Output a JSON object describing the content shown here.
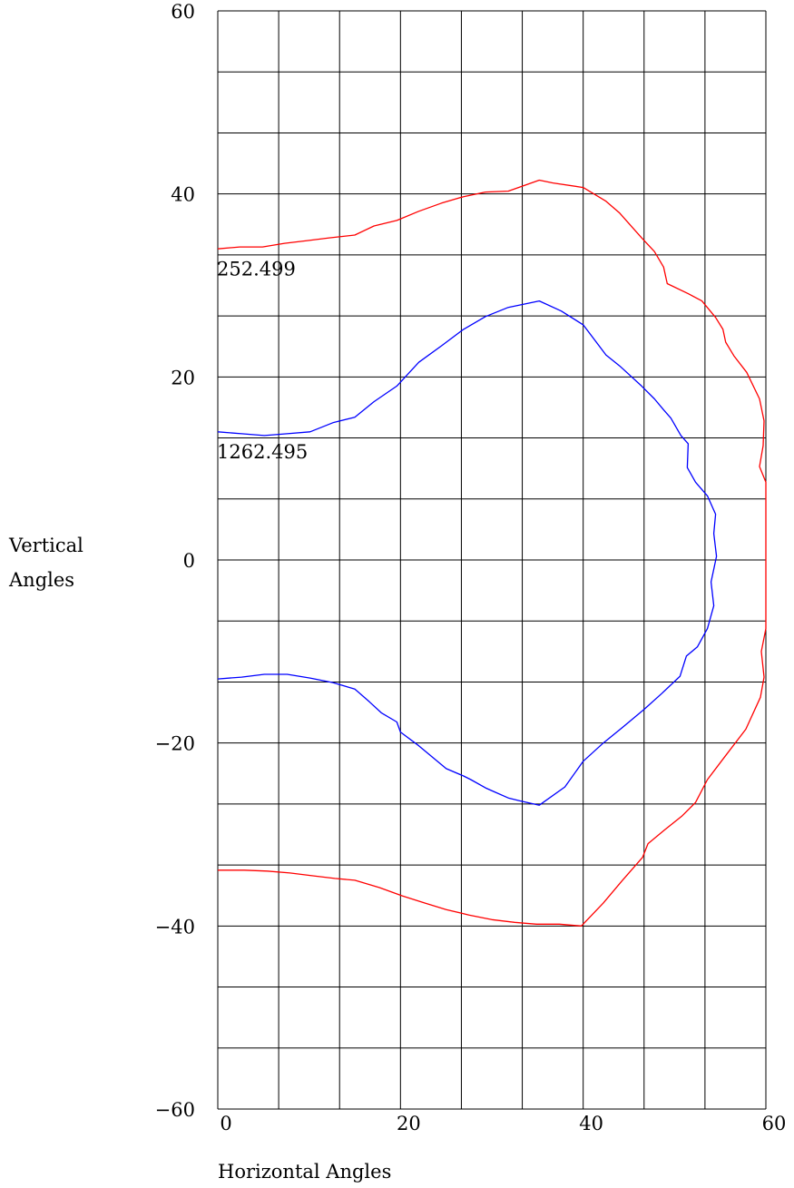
{
  "chart_data": {
    "type": "line",
    "title": "",
    "xlabel": "Horizontal Angles",
    "ylabel_lines": [
      "Vertical",
      "Angles"
    ],
    "xlim": [
      0,
      60
    ],
    "ylim": [
      -60,
      60
    ],
    "x_ticks": [
      0,
      20,
      40,
      60
    ],
    "y_ticks": [
      60,
      40,
      20,
      0,
      -20,
      -40,
      -60
    ],
    "grid": true,
    "grid_columns": 9,
    "grid_rows": 18,
    "colors": {
      "outer": "#ff0000",
      "inner": "#0000ff",
      "grid": "#000000"
    },
    "series": [
      {
        "label": "252.499",
        "label_at": [
          0,
          32
        ],
        "color": "#ff0000",
        "points": [
          [
            0,
            34.0
          ],
          [
            2.4,
            34.2
          ],
          [
            4.9,
            34.2
          ],
          [
            7.3,
            34.6
          ],
          [
            9.8,
            34.9
          ],
          [
            12.2,
            35.2
          ],
          [
            15.0,
            35.5
          ],
          [
            17.1,
            36.5
          ],
          [
            19.6,
            37.1
          ],
          [
            22.0,
            38.1
          ],
          [
            24.5,
            39.0
          ],
          [
            26.9,
            39.7
          ],
          [
            29.3,
            40.2
          ],
          [
            31.8,
            40.3
          ],
          [
            35.2,
            41.5
          ],
          [
            36.7,
            41.2
          ],
          [
            40.0,
            40.7
          ],
          [
            42.5,
            39.2
          ],
          [
            44.0,
            37.9
          ],
          [
            46.4,
            35.2
          ],
          [
            47.8,
            33.7
          ],
          [
            48.8,
            32.0
          ],
          [
            49.2,
            30.2
          ],
          [
            51.5,
            29.1
          ],
          [
            53.0,
            28.3
          ],
          [
            54.5,
            26.5
          ],
          [
            55.3,
            25.2
          ],
          [
            55.6,
            23.8
          ],
          [
            56.5,
            22.3
          ],
          [
            57.9,
            20.5
          ],
          [
            59.3,
            17.6
          ],
          [
            59.8,
            15.2
          ],
          [
            59.7,
            12.5
          ],
          [
            59.3,
            10.2
          ],
          [
            60.0,
            8.5
          ],
          [
            60.0,
            5.0
          ],
          [
            60.0,
            1.0
          ],
          [
            60.0,
            -3.0
          ],
          [
            60.0,
            -5.0
          ],
          [
            60.0,
            -7.5
          ],
          [
            59.5,
            -10.0
          ],
          [
            59.8,
            -12.8
          ],
          [
            59.4,
            -15.0
          ],
          [
            57.8,
            -18.5
          ],
          [
            55.5,
            -21.5
          ],
          [
            53.6,
            -24.0
          ],
          [
            52.3,
            -26.5
          ],
          [
            50.8,
            -28.0
          ],
          [
            48.9,
            -29.5
          ],
          [
            47.1,
            -31.0
          ],
          [
            46.5,
            -32.5
          ],
          [
            44.3,
            -35.0
          ],
          [
            42.2,
            -37.5
          ],
          [
            39.8,
            -40.0
          ],
          [
            37.4,
            -39.8
          ],
          [
            34.9,
            -39.8
          ],
          [
            32.5,
            -39.6
          ],
          [
            30.0,
            -39.3
          ],
          [
            27.5,
            -38.8
          ],
          [
            25.0,
            -38.2
          ],
          [
            22.7,
            -37.5
          ],
          [
            20.2,
            -36.7
          ],
          [
            17.7,
            -35.8
          ],
          [
            15.0,
            -35.0
          ],
          [
            12.8,
            -34.8
          ],
          [
            10.3,
            -34.5
          ],
          [
            7.9,
            -34.2
          ],
          [
            5.4,
            -34.0
          ],
          [
            2.9,
            -33.9
          ],
          [
            0,
            -33.9
          ]
        ]
      },
      {
        "label": "1262.495",
        "label_at": [
          0,
          12
        ],
        "color": "#0000ff",
        "points": [
          [
            0,
            14.0
          ],
          [
            2.6,
            13.8
          ],
          [
            5.1,
            13.6
          ],
          [
            7.6,
            13.8
          ],
          [
            10.1,
            14.0
          ],
          [
            12.6,
            15.0
          ],
          [
            15.0,
            15.6
          ],
          [
            17.1,
            17.3
          ],
          [
            19.6,
            19.0
          ],
          [
            22.0,
            21.6
          ],
          [
            24.5,
            23.4
          ],
          [
            26.9,
            25.2
          ],
          [
            29.3,
            26.6
          ],
          [
            31.8,
            27.6
          ],
          [
            35.2,
            28.3
          ],
          [
            37.6,
            27.2
          ],
          [
            40.0,
            25.7
          ],
          [
            42.5,
            22.4
          ],
          [
            44.0,
            21.2
          ],
          [
            46.4,
            19.0
          ],
          [
            47.8,
            17.6
          ],
          [
            48.8,
            16.4
          ],
          [
            49.6,
            15.5
          ],
          [
            50.7,
            13.6
          ],
          [
            51.5,
            12.7
          ],
          [
            51.4,
            10.1
          ],
          [
            52.3,
            8.5
          ],
          [
            53.6,
            7.0
          ],
          [
            54.5,
            5.0
          ],
          [
            54.3,
            2.9
          ],
          [
            54.6,
            0.4
          ],
          [
            54.0,
            -2.4
          ],
          [
            54.3,
            -5.0
          ],
          [
            53.6,
            -7.5
          ],
          [
            52.5,
            -9.5
          ],
          [
            51.3,
            -10.5
          ],
          [
            50.6,
            -12.7
          ],
          [
            48.6,
            -14.6
          ],
          [
            46.7,
            -16.3
          ],
          [
            44.3,
            -18.3
          ],
          [
            42.2,
            -20.0
          ],
          [
            40.0,
            -22.0
          ],
          [
            38.0,
            -24.8
          ],
          [
            35.2,
            -26.8
          ],
          [
            33.0,
            -26.3
          ],
          [
            31.8,
            -26.0
          ],
          [
            30.2,
            -25.3
          ],
          [
            29.3,
            -24.9
          ],
          [
            27.7,
            -24.0
          ],
          [
            26.9,
            -23.6
          ],
          [
            25.0,
            -22.8
          ],
          [
            22.0,
            -20.3
          ],
          [
            20.0,
            -18.8
          ],
          [
            19.6,
            -17.7
          ],
          [
            17.9,
            -16.7
          ],
          [
            16.6,
            -15.5
          ],
          [
            15.0,
            -14.1
          ],
          [
            12.6,
            -13.4
          ],
          [
            10.1,
            -12.9
          ],
          [
            7.6,
            -12.5
          ],
          [
            5.1,
            -12.5
          ],
          [
            2.6,
            -12.8
          ],
          [
            0,
            -13.0
          ]
        ]
      }
    ]
  }
}
